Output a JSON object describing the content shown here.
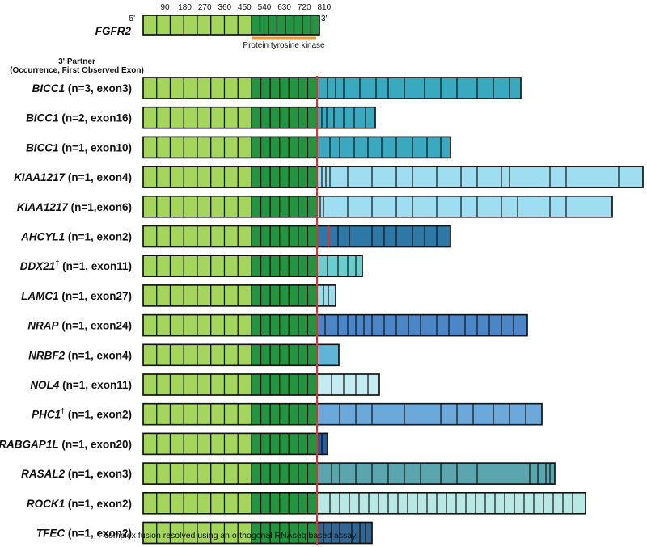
{
  "gene": {
    "name": "FGFR2",
    "five_prime": "5'",
    "three_prime": "3'",
    "ticks": [
      "90",
      "180",
      "270",
      "360",
      "450",
      "540",
      "630",
      "720",
      "810"
    ],
    "domain_label": "Protein tyrosine kinase",
    "light_exons": 8,
    "dark_exons": 8
  },
  "partner_header": {
    "line1": "3' Partner",
    "line2": "(Occurrence, First Observed Exon)"
  },
  "colors": {
    "light_green": "#a4d65e",
    "dark_green": "#239440",
    "breakpoint": "#e03030",
    "domain_bar": "#f29a28",
    "outline": "#111111"
  },
  "fusions": [
    {
      "gene": "BICC1",
      "dagger": "",
      "detail": "(n=3, exon3)",
      "color": "#3aa8bf",
      "end": 644,
      "boundaries": [
        405,
        415,
        425,
        445,
        465,
        480,
        500,
        525,
        545,
        565,
        590,
        610,
        630
      ],
      "breakpoint": 392
    },
    {
      "gene": "BICC1",
      "dagger": "",
      "detail": "(n=2, exon16)",
      "color": "#3aa8bf",
      "end": 464,
      "boundaries": [
        398,
        404,
        413,
        425,
        438,
        452
      ],
      "breakpoint": 392
    },
    {
      "gene": "BICC1",
      "dagger": "",
      "detail": "(n=1, exon10)",
      "color": "#3aa8bf",
      "end": 557,
      "boundaries": [
        408,
        420,
        438,
        455,
        472,
        490,
        510,
        528,
        545
      ],
      "breakpoint": 392
    },
    {
      "gene": "KIAA1217",
      "dagger": "",
      "detail": "(n=1, exon4)",
      "color": "#9edef0",
      "end": 795,
      "boundaries": [
        398,
        403,
        408,
        430,
        460,
        490,
        510,
        540,
        570,
        590,
        620,
        630,
        680,
        700,
        765
      ],
      "breakpoint": 392
    },
    {
      "gene": "KIAA1217",
      "dagger": "",
      "detail": "(n=1,exon6)",
      "color": "#9edef0",
      "end": 757,
      "boundaries": [
        396,
        400,
        430,
        460,
        490,
        510,
        540,
        570,
        590,
        620,
        640,
        680,
        700
      ],
      "breakpoint": 392
    },
    {
      "gene": "AHCYL1",
      "dagger": "",
      "detail": "(n=1, exon2)",
      "color": "#2e78a8",
      "end": 557,
      "boundaries": [
        406,
        418,
        432,
        460,
        475,
        490,
        510,
        525,
        540
      ],
      "breakpoint": 406
    },
    {
      "gene": "DDX21",
      "dagger": "†",
      "detail": "(n=1, exon11)",
      "color": "#6ccdcf",
      "end": 448,
      "boundaries": [
        405,
        418,
        430,
        440
      ],
      "breakpoint": 392
    },
    {
      "gene": "LAMC1",
      "dagger": "",
      "detail": "(n=1, exon27)",
      "color": "#9adcf0",
      "end": 415,
      "boundaries": [
        400,
        406
      ],
      "breakpoint": 392
    },
    {
      "gene": "NRAP",
      "dagger": "",
      "detail": "(n=1, exon24)",
      "color": "#4b86c8",
      "end": 652,
      "boundaries": [
        402,
        418,
        430,
        440,
        450,
        460,
        475,
        490,
        505,
        520,
        540,
        555,
        575,
        590,
        605,
        620,
        635
      ],
      "breakpoint": 392
    },
    {
      "gene": "NRBF2",
      "dagger": "",
      "detail": "(n=1, exon4)",
      "color": "#5fb5d8",
      "end": 419,
      "boundaries": [],
      "breakpoint": 392
    },
    {
      "gene": "NOL4",
      "dagger": "",
      "detail": "(n=1, exon11)",
      "color": "#c4eaf2",
      "end": 469,
      "boundaries": [
        410,
        425,
        440,
        455
      ],
      "breakpoint": 392
    },
    {
      "gene": "PHC1",
      "dagger": "†",
      "detail": "(n=1, exon2)",
      "color": "#6aa9da",
      "end": 670,
      "boundaries": [
        420,
        440,
        460,
        500,
        545,
        565,
        585,
        610,
        630,
        650
      ],
      "breakpoint": 392
    },
    {
      "gene": "RABGAP1L",
      "dagger": "",
      "detail": "(n=1, exon20)",
      "color": "#275d99",
      "end": 405,
      "boundaries": [
        398
      ],
      "breakpoint": 392
    },
    {
      "gene": "RASAL2",
      "dagger": "",
      "detail": "(n=1, exon3)",
      "color": "#5ba6ae",
      "end": 686,
      "boundaries": [
        410,
        420,
        440,
        460,
        480,
        500,
        520,
        545,
        565,
        590,
        655,
        665,
        675,
        680
      ],
      "breakpoint": 392
    },
    {
      "gene": "ROCK1",
      "dagger": "",
      "detail": "(n=1, exon2)",
      "color": "#b7e8e4",
      "end": 724,
      "boundaries": [
        408,
        420,
        432,
        444,
        456,
        468,
        480,
        492,
        504,
        516,
        528,
        540,
        552,
        564,
        576,
        588,
        600,
        612,
        624,
        636,
        648,
        660,
        672,
        684,
        696,
        708
      ],
      "breakpoint": 392
    },
    {
      "gene": "TFEC",
      "dagger": "",
      "detail": "(n=1, exon2)",
      "color": "#326690",
      "end": 460,
      "boundaries": [
        400,
        410,
        420,
        435,
        445,
        452
      ],
      "breakpoint": 392
    }
  ],
  "footnote": "† complex fusion resolved using an orthogonal RNAseq based assay."
}
